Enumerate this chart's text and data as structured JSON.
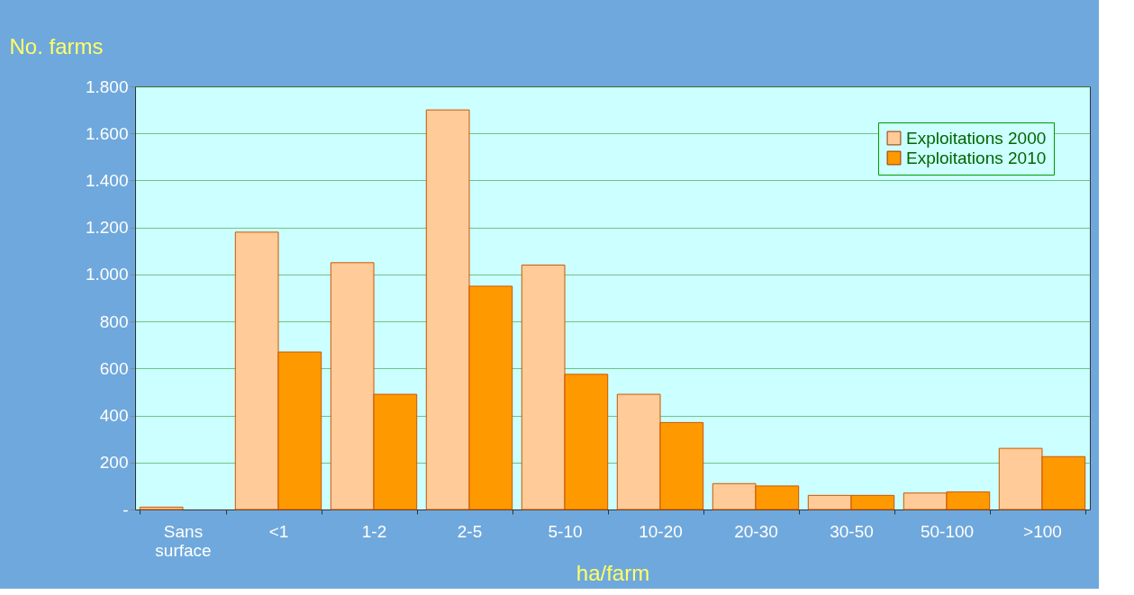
{
  "chart_data": {
    "type": "bar",
    "ylabel": "No. farms",
    "xlabel": "ha/farm",
    "categories": [
      "Sans surface",
      "<1",
      "1-2",
      "2-5",
      "5-10",
      "10-20",
      "20-30",
      "30-50",
      "50-100",
      ">100"
    ],
    "series": [
      {
        "name": "Exploitations 2000",
        "color": "#ffcc99",
        "values": [
          10,
          1180,
          1050,
          1700,
          1040,
          490,
          110,
          60,
          70,
          260
        ]
      },
      {
        "name": "Exploitations 2010",
        "color": "#ff9900",
        "values": [
          null,
          670,
          490,
          950,
          575,
          370,
          100,
          60,
          75,
          225
        ]
      }
    ],
    "ylim": [
      0,
      1800
    ],
    "yticks": [
      {
        "value": 0,
        "label": "-"
      },
      200,
      400,
      600,
      800,
      {
        "value": 1000,
        "label": "1.000"
      },
      {
        "value": 1200,
        "label": "1.200"
      },
      {
        "value": 1400,
        "label": "1.400"
      },
      {
        "value": 1600,
        "label": "1.600"
      },
      {
        "value": 1800,
        "label": "1.800"
      }
    ],
    "grid": "y",
    "legend": "top right"
  }
}
